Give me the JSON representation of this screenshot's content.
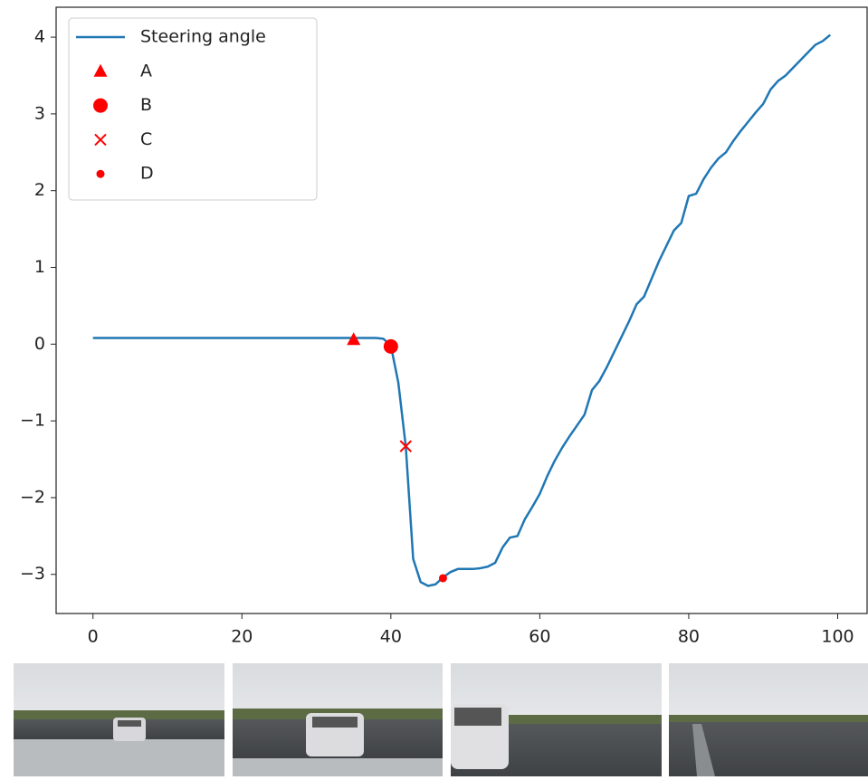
{
  "chart_data": {
    "type": "line",
    "xlim": [
      -4.95,
      103.95
    ],
    "ylim": [
      -3.51,
      4.39
    ],
    "xticks": [
      0,
      20,
      40,
      60,
      80,
      100
    ],
    "yticks": [
      {
        "value": -3,
        "label": "−3"
      },
      {
        "value": -2,
        "label": "−2"
      },
      {
        "value": -1,
        "label": "−1"
      },
      0,
      1,
      2,
      3,
      4
    ],
    "legend": "upper left",
    "series": [
      {
        "name": "Steering angle",
        "color": "#1f77b4",
        "x": [
          0,
          1,
          2,
          3,
          4,
          5,
          6,
          7,
          8,
          9,
          10,
          11,
          12,
          13,
          14,
          15,
          16,
          17,
          18,
          19,
          20,
          21,
          22,
          23,
          24,
          25,
          26,
          27,
          28,
          29,
          30,
          31,
          32,
          33,
          34,
          35,
          36,
          37,
          38,
          39,
          40,
          41,
          42,
          43,
          44,
          45,
          46,
          47,
          48,
          49,
          50,
          51,
          52,
          53,
          54,
          55,
          56,
          57,
          58,
          59,
          60,
          61,
          62,
          63,
          64,
          65,
          66,
          67,
          68,
          69,
          70,
          71,
          72,
          73,
          74,
          75,
          76,
          77,
          78,
          79,
          80,
          81,
          82,
          83,
          84,
          85,
          86,
          87,
          88,
          89,
          90,
          91,
          92,
          93,
          94,
          95,
          96,
          97,
          98,
          99
        ],
        "values": [
          0.08,
          0.08,
          0.08,
          0.08,
          0.08,
          0.08,
          0.08,
          0.08,
          0.08,
          0.08,
          0.08,
          0.08,
          0.08,
          0.08,
          0.08,
          0.08,
          0.08,
          0.08,
          0.08,
          0.08,
          0.08,
          0.08,
          0.08,
          0.08,
          0.08,
          0.08,
          0.08,
          0.08,
          0.08,
          0.08,
          0.08,
          0.08,
          0.08,
          0.08,
          0.08,
          0.08,
          0.08,
          0.08,
          0.08,
          0.07,
          -0.02,
          -0.5,
          -1.33,
          -2.8,
          -3.1,
          -3.15,
          -3.13,
          -3.04,
          -2.97,
          -2.93,
          -2.93,
          -2.93,
          -2.92,
          -2.9,
          -2.85,
          -2.65,
          -2.52,
          -2.5,
          -2.28,
          -2.12,
          -1.95,
          -1.72,
          -1.52,
          -1.35,
          -1.2,
          -1.06,
          -0.92,
          -0.6,
          -0.48,
          -0.3,
          -0.1,
          0.1,
          0.3,
          0.52,
          0.62,
          0.85,
          1.08,
          1.28,
          1.48,
          1.58,
          1.93,
          1.96,
          2.15,
          2.3,
          2.42,
          2.5,
          2.65,
          2.78,
          2.9,
          3.02,
          3.13,
          3.32,
          3.43,
          3.5,
          3.6,
          3.7,
          3.8,
          3.9,
          3.95,
          4.03
        ]
      },
      {
        "name": "A",
        "color": "#ff0000",
        "marker": "^",
        "x": [
          35
        ],
        "values": [
          0.06
        ]
      },
      {
        "name": "B",
        "color": "#ff0000",
        "marker": "o",
        "x": [
          40
        ],
        "values": [
          -0.03
        ]
      },
      {
        "name": "C",
        "color": "#ff0000",
        "marker": "x",
        "x": [
          42
        ],
        "values": [
          -1.33
        ]
      },
      {
        "name": "D",
        "color": "#ff0000",
        "marker": ".",
        "x": [
          47
        ],
        "values": [
          -3.05
        ]
      }
    ]
  }
}
